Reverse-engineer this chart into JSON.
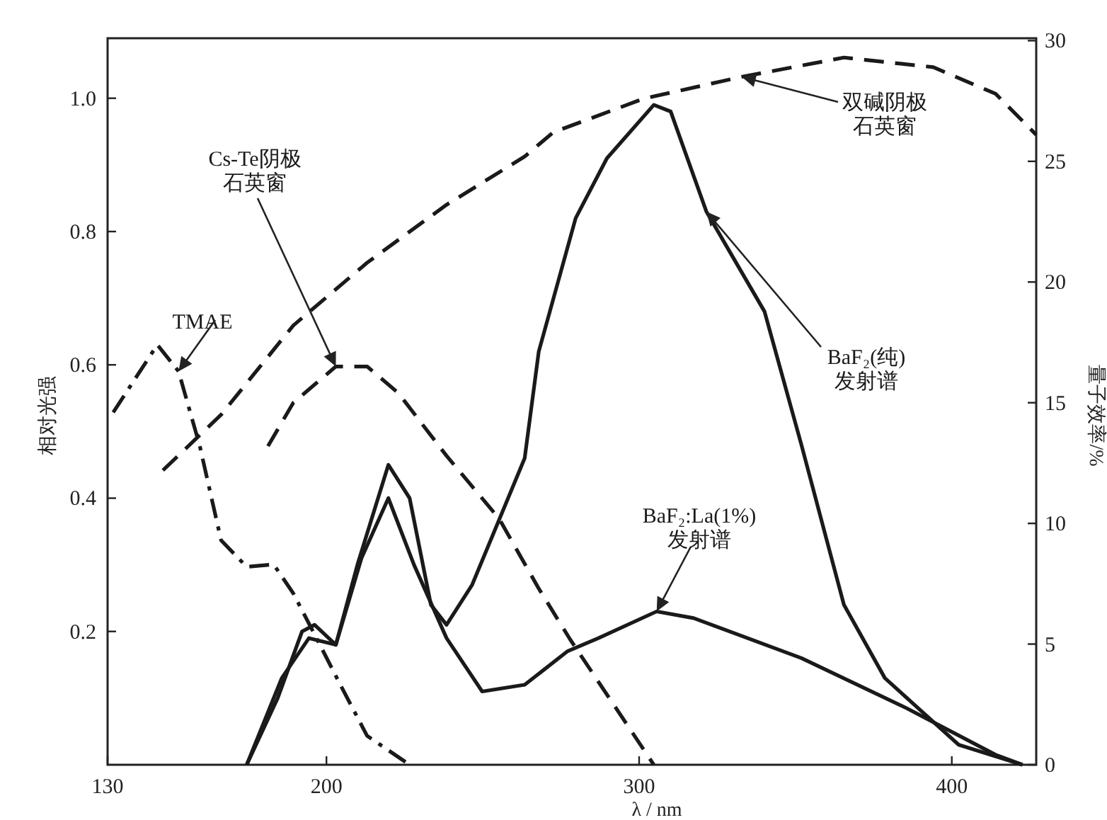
{
  "chart_data": {
    "type": "line",
    "xlabel": "λ / nm",
    "ylabel": "相对光强",
    "y2label": "量子效率/%",
    "xlim": [
      130,
      427
    ],
    "xticks": [
      130,
      200,
      300,
      400
    ],
    "ylim": [
      0,
      1.09
    ],
    "yticks": [
      0.2,
      0.4,
      0.6,
      0.8,
      {
        "value": 1.0,
        "label": "1.0"
      }
    ],
    "y2lim": [
      0,
      30.1
    ],
    "y2ticks": [
      0,
      5,
      10,
      15,
      20,
      25,
      30
    ],
    "grid": false,
    "legend": false,
    "marker": "none",
    "series": [
      {
        "name": "TMAE",
        "color": "#1a1a1a",
        "axis": "y2",
        "line_style": "dashdot",
        "x": [
          131.8,
          145.9,
          152.7,
          159.5,
          166.3,
          174.5,
          183.1,
          189.4,
          196.2,
          204.9,
          213,
          226.6
        ],
        "values": [
          14.6,
          17.4,
          16.3,
          13.2,
          9.3,
          8.2,
          8.3,
          7.1,
          5.4,
          3.2,
          1.2,
          0
        ]
      },
      {
        "name": "Cs-Te阴极石英窗",
        "color": "#1a1a1a",
        "axis": "y2",
        "line_style": "dashed",
        "x": [
          181.3,
          189.4,
          203,
          213,
          223,
          238.4,
          255.2,
          267.9,
          277.9,
          304.7
        ],
        "values": [
          13.2,
          15,
          16.5,
          16.5,
          15.4,
          12.8,
          10.2,
          7.3,
          5.2,
          0
        ]
      },
      {
        "name": "双碱阴极石英窗",
        "color": "#1a1a1a",
        "axis": "y2",
        "line_style": "dashed",
        "x": [
          147.7,
          166.3,
          189.4,
          213,
          238.4,
          263.4,
          272.5,
          301.5,
          332.8,
          365.5,
          394.1,
          414,
          427
        ],
        "values": [
          12.2,
          14.5,
          18.2,
          20.8,
          23.2,
          25.2,
          26.2,
          27.6,
          28.5,
          29.3,
          28.9,
          27.8,
          26.1
        ]
      },
      {
        "name": "BaF₂(纯)发射谱",
        "color": "#1a1a1a",
        "line_style": "solid",
        "x": [
          174.5,
          184.4,
          192.2,
          196.2,
          203,
          209.9,
          219.8,
          226.6,
          233.4,
          238.4,
          246.6,
          263.4,
          267.9,
          279.7,
          289.7,
          304.7,
          310.1,
          321.5,
          340.1,
          351.9,
          365.5,
          378.6,
          402.2,
          422.6
        ],
        "values": [
          0,
          0.1,
          0.2,
          0.21,
          0.18,
          0.3,
          0.45,
          0.4,
          0.24,
          0.21,
          0.27,
          0.46,
          0.62,
          0.82,
          0.91,
          0.99,
          0.98,
          0.83,
          0.68,
          0.48,
          0.24,
          0.13,
          0.03,
          0
        ]
      },
      {
        "name": "BaF₂:La(1%)发射谱",
        "color": "#1a1a1a",
        "line_style": "solid",
        "x": [
          174.5,
          185.7,
          194.4,
          203,
          211.2,
          219.8,
          228,
          238.4,
          249.8,
          263.4,
          277,
          287,
          305.6,
          317.4,
          351.9,
          385.5,
          414,
          422.6
        ],
        "values": [
          0,
          0.13,
          0.19,
          0.18,
          0.31,
          0.4,
          0.3,
          0.19,
          0.11,
          0.12,
          0.17,
          0.19,
          0.23,
          0.22,
          0.16,
          0.085,
          0.015,
          0
        ]
      }
    ]
  }
}
